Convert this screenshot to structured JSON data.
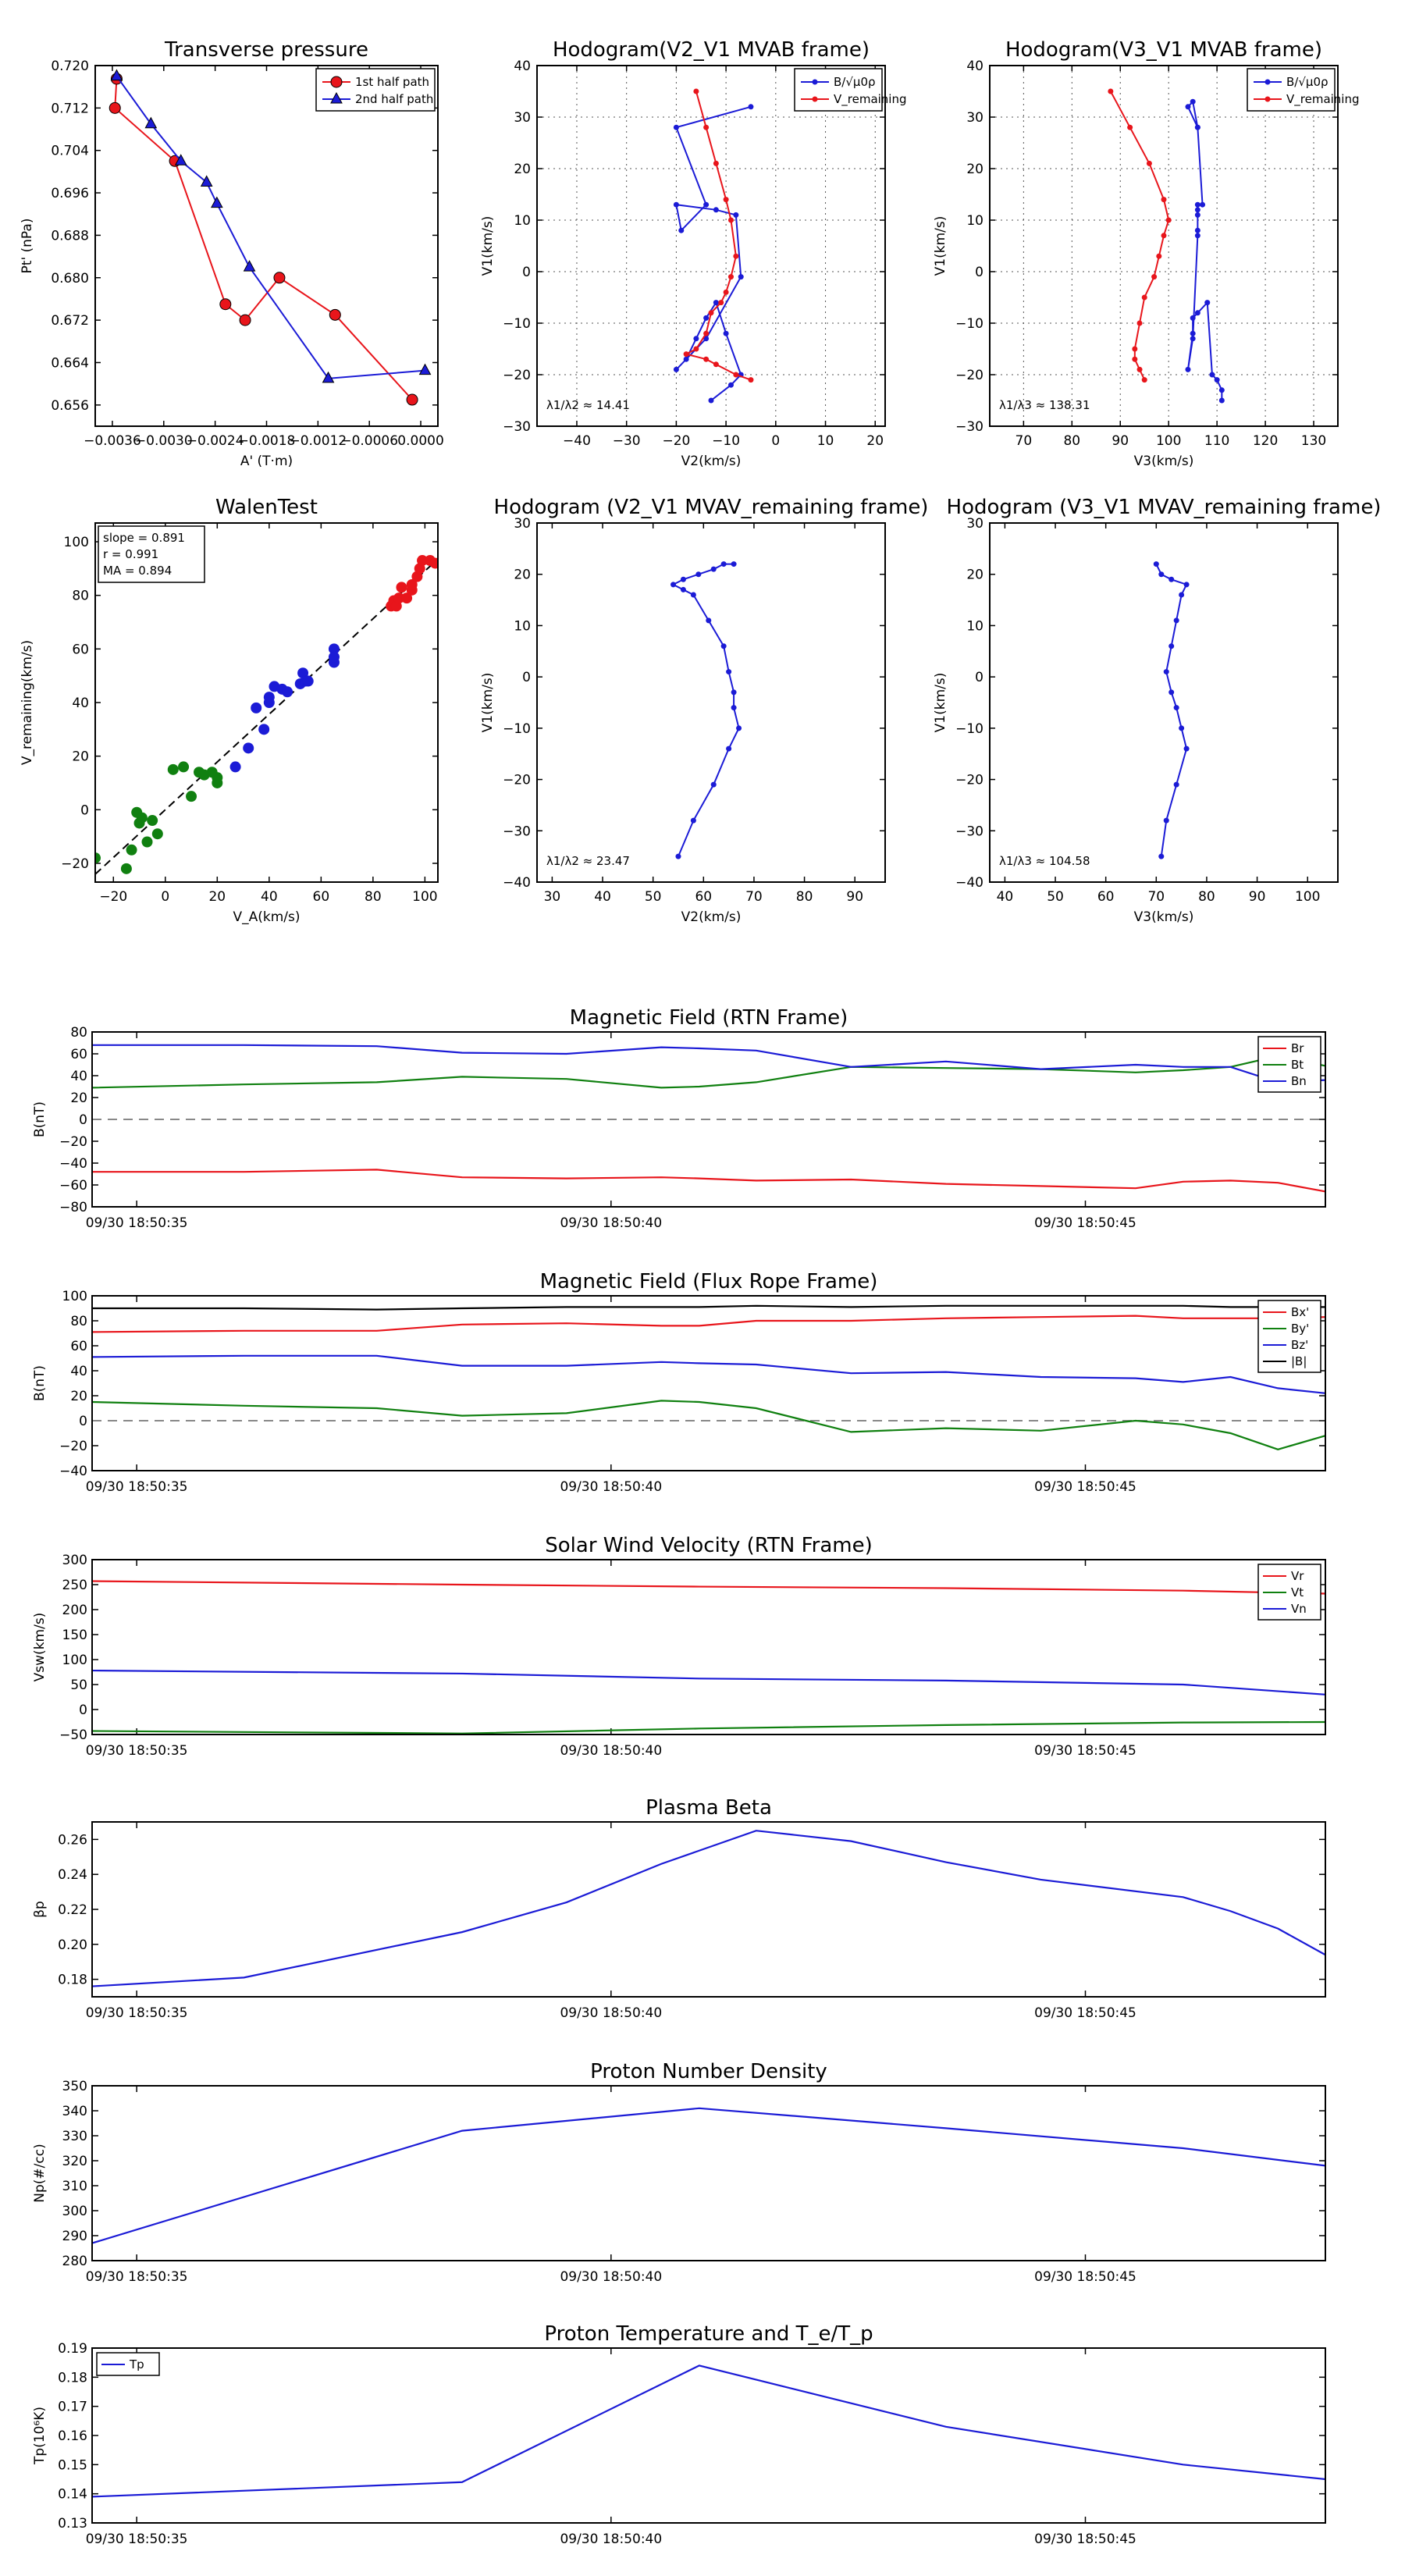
{
  "colors": {
    "red": "#e8151b",
    "blue": "#1b1bd6",
    "green": "#108010",
    "black": "#000000",
    "dash": "#888888"
  },
  "chart_data": [
    {
      "id": "tp",
      "type": "line",
      "title": "Transverse pressure",
      "xlabel": "A' (T·m)",
      "ylabel": "Pt' (nPa)",
      "xlim": [
        -0.0038,
        0.0002
      ],
      "ylim": [
        0.652,
        0.72
      ],
      "xticks": [
        -0.0036,
        -0.003,
        -0.0024,
        -0.0018,
        -0.0012,
        -0.0006,
        0.0
      ],
      "xticklabels": [
        "−0.0036",
        "−0.0030",
        "−0.0024",
        "−0.0018",
        "−0.0012",
        "−0.0006",
        "0.0000"
      ],
      "yticks": [
        0.656,
        0.664,
        0.672,
        0.68,
        0.688,
        0.696,
        0.704,
        0.712,
        0.72
      ],
      "yticklabels": [
        "0.656",
        "0.664",
        "0.672",
        "0.680",
        "0.688",
        "0.696",
        "0.704",
        "0.712",
        "0.720"
      ],
      "grid": false,
      "legend": "top-right",
      "series": [
        {
          "name": "1st half path",
          "color": "red",
          "marker": "circle",
          "x": [
            -0.00355,
            -0.00357,
            -0.00287,
            -0.00228,
            -0.00205,
            -0.00165,
            -0.001,
            -0.0001
          ],
          "y": [
            0.7175,
            0.712,
            0.702,
            0.675,
            0.672,
            0.68,
            0.673,
            0.657
          ]
        },
        {
          "name": "2nd half path",
          "color": "blue",
          "marker": "triangle",
          "x": [
            -0.00355,
            -0.00315,
            -0.0028,
            -0.0025,
            -0.00238,
            -0.002,
            -0.00108,
            5e-05
          ],
          "y": [
            0.718,
            0.709,
            0.702,
            0.698,
            0.694,
            0.682,
            0.661,
            0.6625
          ]
        }
      ]
    },
    {
      "id": "h1",
      "type": "line",
      "title": "Hodogram(V2_V1 MVAB frame)",
      "xlabel": "V2(km/s)",
      "ylabel": "V1(km/s)",
      "xlim": [
        -48,
        22
      ],
      "ylim": [
        -30,
        40
      ],
      "xticks": [
        -40,
        -30,
        -20,
        -10,
        0,
        10,
        20
      ],
      "yticks": [
        -30,
        -20,
        -10,
        0,
        10,
        20,
        30,
        40
      ],
      "grid": true,
      "legend": "top-right",
      "annotation": "λ1/λ2 ≈ 14.41",
      "series": [
        {
          "name": "B/√μ0ρ",
          "color": "blue",
          "marker": "dot",
          "x": [
            -13,
            -9,
            -7,
            -10,
            -12,
            -14,
            -16,
            -18,
            -20,
            -14,
            -7,
            -8,
            -12,
            -20,
            -19,
            -14,
            -20,
            -5
          ],
          "y": [
            -25,
            -22,
            -20,
            -12,
            -6,
            -9,
            -13,
            -17,
            -19,
            -13,
            -1,
            11,
            12,
            13,
            8,
            13,
            28,
            32
          ]
        },
        {
          "name": "V_remaining",
          "color": "red",
          "marker": "dot",
          "x": [
            -16,
            -14,
            -12,
            -10,
            -9,
            -8,
            -9,
            -10,
            -11,
            -13,
            -14,
            -16,
            -18,
            -14,
            -12,
            -8,
            -5
          ],
          "y": [
            35,
            28,
            21,
            14,
            10,
            3,
            -1,
            -4,
            -6,
            -8,
            -12,
            -15,
            -16,
            -17,
            -18,
            -20,
            -21
          ]
        }
      ]
    },
    {
      "id": "h2",
      "type": "line",
      "title": "Hodogram(V3_V1 MVAB frame)",
      "xlabel": "V3(km/s)",
      "ylabel": "V1(km/s)",
      "xlim": [
        63,
        135
      ],
      "ylim": [
        -30,
        40
      ],
      "xticks": [
        70,
        80,
        90,
        100,
        110,
        120,
        130
      ],
      "yticks": [
        -30,
        -20,
        -10,
        0,
        10,
        20,
        30,
        40
      ],
      "grid": true,
      "legend": "top-right",
      "annotation": "λ1/λ3 ≈ 138.31",
      "series": [
        {
          "name": "B/√μ0ρ",
          "color": "blue",
          "marker": "dot",
          "x": [
            111,
            111,
            110,
            109,
            108,
            106,
            105,
            105,
            104,
            105,
            106,
            106,
            106,
            106,
            106,
            107,
            106,
            104,
            105,
            106
          ],
          "y": [
            -25,
            -23,
            -21,
            -20,
            -6,
            -8,
            -9,
            -12,
            -19,
            -13,
            7,
            8,
            11,
            12,
            13,
            13,
            28,
            32,
            33,
            28
          ]
        },
        {
          "name": "V_remaining",
          "color": "red",
          "marker": "dot",
          "x": [
            88,
            92,
            96,
            99,
            100,
            99,
            98,
            97,
            95,
            94,
            93,
            93,
            94,
            95
          ],
          "y": [
            35,
            28,
            21,
            14,
            10,
            7,
            3,
            -1,
            -5,
            -10,
            -15,
            -17,
            -19,
            -21
          ]
        }
      ]
    },
    {
      "id": "walen",
      "type": "scatter",
      "title": "WalenTest",
      "xlabel": "V_A(km/s)",
      "ylabel": "V_remaining(km/s)",
      "xlim": [
        -27,
        105
      ],
      "ylim": [
        -27,
        107
      ],
      "xticks": [
        -20,
        0,
        20,
        40,
        60,
        80,
        100
      ],
      "yticks": [
        -20,
        0,
        20,
        40,
        60,
        80,
        100
      ],
      "grid": false,
      "slope": 0.891,
      "text": [
        "slope = 0.891",
        "r = 0.991",
        "MA = 0.894"
      ],
      "series": [
        {
          "name": "green",
          "color": "green",
          "x": [
            -27,
            -15,
            -13,
            -11,
            -10,
            -9,
            -7,
            -5,
            -3,
            3,
            7,
            10,
            13,
            15,
            18,
            20,
            20
          ],
          "y": [
            -18,
            -22,
            -15,
            -1,
            -5,
            -3,
            -12,
            -4,
            -9,
            15,
            16,
            5,
            14,
            13,
            14,
            10,
            12
          ]
        },
        {
          "name": "blue",
          "color": "blue",
          "x": [
            27,
            32,
            35,
            38,
            40,
            40,
            42,
            45,
            47,
            52,
            53,
            54,
            55,
            65,
            65,
            65
          ],
          "y": [
            16,
            23,
            38,
            30,
            40,
            42,
            46,
            45,
            44,
            47,
            51,
            48,
            48,
            60,
            55,
            57
          ]
        },
        {
          "name": "red",
          "color": "red",
          "x": [
            87,
            88,
            89,
            90,
            91,
            93,
            95,
            95,
            97,
            98,
            99,
            102,
            104
          ],
          "y": [
            76,
            78,
            76,
            79,
            83,
            79,
            82,
            84,
            87,
            90,
            93,
            93,
            92
          ]
        }
      ]
    },
    {
      "id": "h3",
      "type": "line",
      "title": "Hodogram (V2_V1 MVAV_remaining frame)",
      "xlabel": "V2(km/s)",
      "ylabel": "V1(km/s)",
      "xlim": [
        27,
        96
      ],
      "ylim": [
        -40,
        30
      ],
      "xticks": [
        30,
        40,
        50,
        60,
        70,
        80,
        90
      ],
      "yticks": [
        -40,
        -30,
        -20,
        -10,
        0,
        10,
        20,
        30
      ],
      "grid": false,
      "annotation": "λ1/λ2 ≈ 23.47",
      "series": [
        {
          "name": "hodo",
          "color": "blue",
          "marker": "dot",
          "x": [
            55,
            58,
            62,
            65,
            67,
            66,
            66,
            65,
            64,
            61,
            58,
            56,
            54,
            56,
            59,
            62,
            64,
            66
          ],
          "y": [
            -35,
            -28,
            -21,
            -14,
            -10,
            -6,
            -3,
            1,
            6,
            11,
            16,
            17,
            18,
            19,
            20,
            21,
            22,
            22
          ]
        }
      ]
    },
    {
      "id": "h4",
      "type": "line",
      "title": "Hodogram (V3_V1 MVAV_remaining frame)",
      "xlabel": "V3(km/s)",
      "ylabel": "V1(km/s)",
      "xlim": [
        37,
        106
      ],
      "ylim": [
        -40,
        30
      ],
      "xticks": [
        40,
        50,
        60,
        70,
        80,
        90,
        100
      ],
      "yticks": [
        -40,
        -30,
        -20,
        -10,
        0,
        10,
        20,
        30
      ],
      "grid": false,
      "annotation": "λ1/λ3 ≈ 104.58",
      "series": [
        {
          "name": "hodo",
          "color": "blue",
          "marker": "dot",
          "x": [
            71,
            72,
            74,
            76,
            75,
            74,
            73,
            72,
            73,
            74,
            75,
            76,
            73,
            71,
            70
          ],
          "y": [
            -35,
            -28,
            -21,
            -14,
            -10,
            -6,
            -3,
            1,
            6,
            11,
            16,
            18,
            19,
            20,
            22
          ]
        }
      ]
    },
    {
      "id": "ts_b",
      "type": "line",
      "title": "Magnetic Field (RTN Frame)",
      "ylabel": "B(nT)",
      "ylim": [
        -80,
        80
      ],
      "yticks": [
        -80,
        -60,
        -40,
        -20,
        0,
        20,
        40,
        60,
        80
      ],
      "yticklabels": [
        "−80",
        "−60",
        "−40",
        "−20",
        "0",
        "20",
        "40",
        "60",
        "80"
      ],
      "xtime": [
        0,
        1.6,
        3,
        3.9,
        5,
        6,
        6.4,
        7,
        8,
        9,
        10,
        11,
        11.5,
        12,
        12.5,
        13
      ],
      "zero_line": true,
      "legend": "top-right",
      "series": [
        {
          "name": "Br",
          "color": "red",
          "values": [
            -48,
            -48,
            -46,
            -53,
            -54,
            -53,
            -54,
            -56,
            -55,
            -59,
            -61,
            -63,
            -57,
            -56,
            -58,
            -66
          ]
        },
        {
          "name": "Bt",
          "color": "green",
          "values": [
            29,
            32,
            34,
            39,
            37,
            29,
            30,
            34,
            48,
            47,
            46,
            43,
            45,
            48,
            58,
            49
          ]
        },
        {
          "name": "Bn",
          "color": "blue",
          "values": [
            68,
            68,
            67,
            61,
            60,
            66,
            65,
            63,
            48,
            53,
            46,
            50,
            48,
            48,
            34,
            36
          ]
        }
      ]
    },
    {
      "id": "ts_fr",
      "type": "line",
      "title": "Magnetic Field (Flux Rope Frame)",
      "ylabel": "B(nT)",
      "ylim": [
        -40,
        100
      ],
      "yticks": [
        -40,
        -20,
        0,
        20,
        40,
        60,
        80,
        100
      ],
      "yticklabels": [
        "−40",
        "−20",
        "0",
        "20",
        "40",
        "60",
        "80",
        "100"
      ],
      "xtime": [
        0,
        1.6,
        3,
        3.9,
        5,
        6,
        6.4,
        7,
        8,
        9,
        10,
        11,
        11.5,
        12,
        12.5,
        13
      ],
      "zero_line": true,
      "legend": "top-right",
      "series": [
        {
          "name": "Bx'",
          "color": "red",
          "values": [
            71,
            72,
            72,
            77,
            78,
            76,
            76,
            80,
            80,
            82,
            83,
            84,
            82,
            82,
            82,
            83
          ]
        },
        {
          "name": "By'",
          "color": "green",
          "values": [
            15,
            12,
            10,
            4,
            6,
            16,
            15,
            10,
            -9,
            -6,
            -8,
            0,
            -3,
            -10,
            -23,
            -12
          ]
        },
        {
          "name": "Bz'",
          "color": "blue",
          "values": [
            51,
            52,
            52,
            44,
            44,
            47,
            46,
            45,
            38,
            39,
            35,
            34,
            31,
            35,
            26,
            22
          ]
        },
        {
          "name": "|B|",
          "color": "black",
          "values": [
            90,
            90,
            89,
            90,
            91,
            91,
            91,
            92,
            91,
            92,
            92,
            92,
            92,
            91,
            91,
            91
          ]
        }
      ]
    },
    {
      "id": "ts_v",
      "type": "line",
      "title": "Solar Wind Velocity (RTN Frame)",
      "ylabel": "Vsw(km/s)",
      "ylim": [
        -50,
        300
      ],
      "yticks": [
        -50,
        0,
        50,
        100,
        150,
        200,
        250,
        300
      ],
      "yticklabels": [
        "−50",
        "0",
        "50",
        "100",
        "150",
        "200",
        "250",
        "300"
      ],
      "xtime": [
        0,
        3.9,
        6.4,
        9,
        11.5,
        13
      ],
      "legend": "top-right",
      "series": [
        {
          "name": "Vr",
          "color": "red",
          "values": [
            257,
            250,
            246,
            243,
            238,
            232
          ]
        },
        {
          "name": "Vt",
          "color": "green",
          "values": [
            -43,
            -48,
            -38,
            -31,
            -26,
            -25
          ]
        },
        {
          "name": "Vn",
          "color": "blue",
          "values": [
            78,
            72,
            62,
            58,
            50,
            30
          ]
        }
      ]
    },
    {
      "id": "ts_beta",
      "type": "line",
      "title": "Plasma Beta",
      "ylabel": "βp",
      "ylim": [
        0.17,
        0.27
      ],
      "yticks": [
        0.18,
        0.2,
        0.22,
        0.24,
        0.26
      ],
      "yticklabels": [
        "0.18",
        "0.20",
        "0.22",
        "0.24",
        "0.26"
      ],
      "xtime": [
        0,
        1.6,
        3.9,
        5,
        6,
        7,
        8,
        9,
        10,
        11.5,
        12,
        12.5,
        13
      ],
      "series": [
        {
          "name": "beta",
          "color": "blue",
          "values": [
            0.176,
            0.181,
            0.207,
            0.224,
            0.246,
            0.265,
            0.259,
            0.247,
            0.237,
            0.227,
            0.219,
            0.209,
            0.194
          ]
        }
      ]
    },
    {
      "id": "ts_np",
      "type": "line",
      "title": "Proton Number Density",
      "ylabel": "Np(#/cc)",
      "ylim": [
        280,
        350
      ],
      "yticks": [
        280,
        290,
        300,
        310,
        320,
        330,
        340,
        350
      ],
      "yticklabels": [
        "280",
        "290",
        "300",
        "310",
        "320",
        "330",
        "340",
        "350"
      ],
      "xtime": [
        0,
        3.9,
        6.4,
        9,
        11.5,
        13
      ],
      "series": [
        {
          "name": "Np",
          "color": "blue",
          "values": [
            287,
            332,
            341,
            333,
            325,
            318
          ]
        }
      ]
    },
    {
      "id": "ts_tp",
      "type": "line",
      "title": "Proton Temperature and T_e/T_p",
      "ylabel": "Tp(10⁶K)",
      "ylim": [
        0.13,
        0.19
      ],
      "yticks": [
        0.13,
        0.14,
        0.15,
        0.16,
        0.17,
        0.18,
        0.19
      ],
      "yticklabels": [
        "0.13",
        "0.14",
        "0.15",
        "0.16",
        "0.17",
        "0.18",
        "0.19"
      ],
      "xtime": [
        0,
        3.9,
        6.4,
        9,
        11.5,
        13
      ],
      "legend": "top-left",
      "series": [
        {
          "name": "Tp",
          "color": "blue",
          "values": [
            0.139,
            0.144,
            0.184,
            0.163,
            0.15,
            0.145
          ]
        }
      ]
    }
  ],
  "time_ticks": [
    {
      "t": 0.47,
      "label": "09/30 18:50:35"
    },
    {
      "t": 5.47,
      "label": "09/30 18:50:40"
    },
    {
      "t": 10.47,
      "label": "09/30 18:50:45"
    }
  ]
}
